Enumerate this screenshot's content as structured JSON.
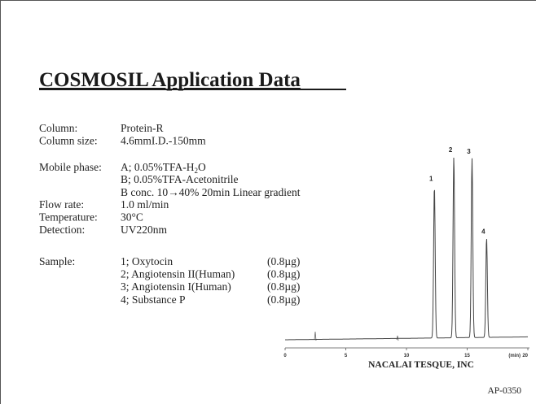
{
  "title": "COSMOSIL Application Data",
  "conditions": {
    "rows": [
      [
        "Column:",
        "Protein-R"
      ],
      [
        "Column size:",
        "4.6mmI.D.-150mm"
      ],
      [
        "Mobile phase:",
        ""
      ]
    ],
    "mobile_phase_label": "Mobile phase:",
    "mobile_phase_a": [
      "A; 0.05%TFA-H",
      "2",
      "O"
    ],
    "mobile_phase_b": "B; 0.05%TFA-Acetonitrile",
    "gradient": "B conc. 10→40% 20min Linear gradient",
    "rows2": [
      [
        "Flow rate:",
        "1.0 ml/min"
      ],
      [
        "Temperature:",
        "30°C"
      ],
      [
        "Detection:",
        "UV220nm"
      ]
    ]
  },
  "sample_label": "Sample:",
  "samples": [
    [
      "1; Oxytocin",
      "(0.8µg)"
    ],
    [
      "2; Angiotensin II(Human)",
      "(0.8µg)"
    ],
    [
      "3; Angiotensin I(Human)",
      "(0.8µg)"
    ],
    [
      "4; Substance P",
      "(0.8µg)"
    ]
  ],
  "chromatogram": {
    "xlim": [
      0,
      20
    ],
    "xticks": [
      0,
      5,
      10,
      15,
      20
    ],
    "x_unit": "(min)",
    "peaks": [
      {
        "label": "1",
        "time": 12.3,
        "height": 84
      },
      {
        "label": "2",
        "time": 13.9,
        "height": 100
      },
      {
        "label": "3",
        "time": 15.4,
        "height": 99
      },
      {
        "label": "4",
        "time": 16.6,
        "height": 55
      }
    ]
  },
  "company": "NACALAI TESQUE, INC",
  "code": "AP-0350"
}
